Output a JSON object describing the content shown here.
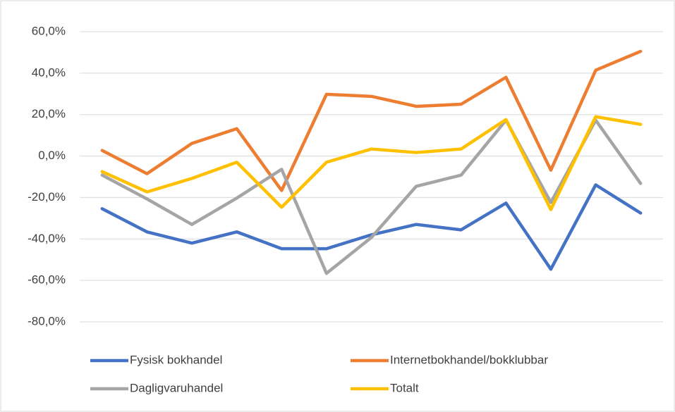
{
  "chart_data": {
    "type": "line",
    "categories": [
      null,
      null,
      null,
      null,
      null,
      null,
      null,
      null,
      null,
      null,
      null,
      null,
      null
    ],
    "series": [
      {
        "name": "Fysisk bokhandel",
        "color": "#4472c4",
        "values": [
          -25.4,
          -36.6,
          -42,
          -36.6,
          -44.7,
          -44.7,
          -38,
          -33,
          -35.6,
          -22.7,
          -54.6,
          -13.9,
          -27.5
        ]
      },
      {
        "name": "Internetbokhandel/bokklubbar",
        "color": "#ed7d31",
        "values": [
          2.7,
          -8.5,
          6.1,
          13.2,
          -16.6,
          29.8,
          28.8,
          24,
          25,
          38,
          -6.8,
          41.4,
          50.5
        ]
      },
      {
        "name": "Dagligvaruhandel",
        "color": "#a5a5a5",
        "values": [
          -9.2,
          -20.7,
          -33,
          -20.3,
          -6.4,
          -56.6,
          -39.3,
          -14.6,
          -9.2,
          17.3,
          -22.4,
          17.3,
          -13.2
        ]
      },
      {
        "name": "Totalt",
        "color": "#ffc000",
        "values": [
          -7.5,
          -17.3,
          -10.8,
          -3,
          -24.7,
          -3,
          3.4,
          1.7,
          3.4,
          17.6,
          -25.8,
          19,
          15.3
        ]
      }
    ],
    "ylim": [
      -80,
      60
    ],
    "yticks": [
      {
        "value": -80,
        "label": "-80,0%"
      },
      {
        "value": -60,
        "label": "-60,0%"
      },
      {
        "value": -40,
        "label": "-40,0%"
      },
      {
        "value": -20,
        "label": "-20,0%"
      },
      {
        "value": 0,
        "label": "0,0%"
      },
      {
        "value": 20,
        "label": "20,0%"
      },
      {
        "value": 40,
        "label": "40,0%"
      },
      {
        "value": 60,
        "label": "60,0%"
      }
    ],
    "grid": true,
    "legend": "bottom"
  }
}
